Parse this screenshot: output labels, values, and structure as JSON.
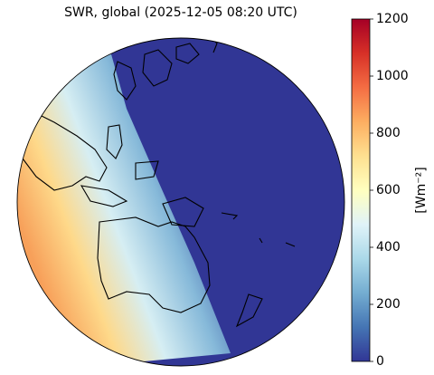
{
  "title": "SWR, global (2025-12-05 08:20 UTC)",
  "colorbar": {
    "label": "[Wm⁻²]",
    "lim": [
      0,
      1200
    ],
    "ticks": [
      0,
      200,
      400,
      600,
      800,
      1000,
      1200
    ],
    "colors": [
      "#313695",
      "#4575b4",
      "#74add1",
      "#abd9e9",
      "#e0f3f8",
      "#ffffbf",
      "#fee090",
      "#fdae61",
      "#f46d43",
      "#d73027",
      "#a50026"
    ]
  }
}
